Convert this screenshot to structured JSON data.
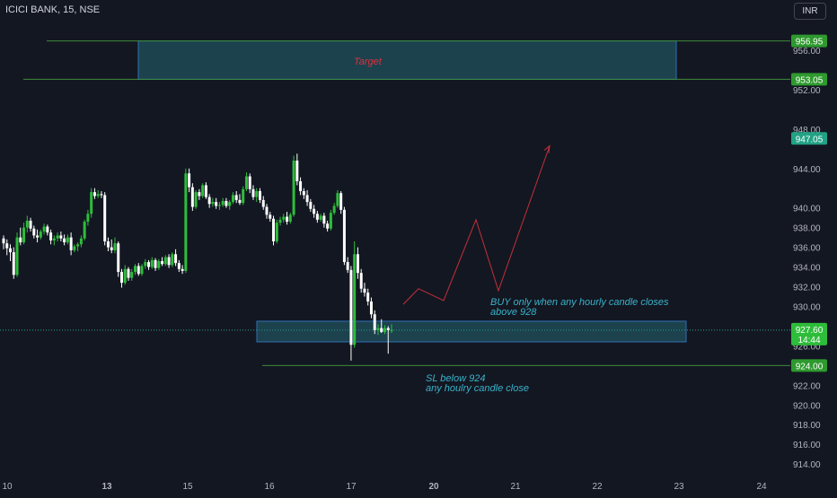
{
  "header": {
    "symbol": "ICICI BANK, 15, NSE",
    "currency": "INR"
  },
  "colors": {
    "background": "#131722",
    "up_candle": "#22ab94",
    "up_candle_bright": "#2ebd3a",
    "down_candle": "#ffffff",
    "zone_fill": "#1f4a55",
    "zone_border": "#2f6fb5",
    "level_line": "#3f8a3a",
    "label_green": "#2e9a2e",
    "label_teal": "#21a285",
    "projection_line": "#c2303a",
    "annotation_blue": "#39b3c9",
    "annotation_red": "#e0303e",
    "axis_text": "#b2b5be"
  },
  "chart_data": {
    "type": "candlestick",
    "y_axis": {
      "ticks": [
        "956.00",
        "952.00",
        "948.00",
        "944.00",
        "940.00",
        "938.00",
        "936.00",
        "934.00",
        "932.00",
        "930.00",
        "928.00",
        "926.00",
        "922.00",
        "920.00",
        "918.00",
        "916.00",
        "914.00"
      ],
      "range": [
        913.0,
        959.0
      ]
    },
    "x_axis": {
      "ticks": [
        "10",
        "13",
        "15",
        "16",
        "17",
        "20",
        "21",
        "22",
        "23",
        "24"
      ]
    },
    "price_labels": [
      {
        "value": "956.95",
        "style": "green"
      },
      {
        "value": "953.05",
        "style": "green"
      },
      {
        "value": "947.05",
        "style": "teal"
      },
      {
        "value": "924.00",
        "style": "green"
      }
    ],
    "current_price": {
      "value": "927.60",
      "countdown": "14:44"
    },
    "annotations": {
      "target": "Target",
      "buy_line1": "BUY only when any hourly candle closes",
      "buy_line2": "above 928",
      "sl_line1": "SL below 924",
      "sl_line2": "any houlry candle close"
    },
    "zones": [
      {
        "name": "target-zone",
        "top": 956.95,
        "bottom": 953.05
      },
      {
        "name": "buy-zone",
        "top": 928.5,
        "bottom": 926.4
      }
    ],
    "levels": [
      956.95,
      953.05,
      924.0
    ],
    "projection_path": [
      930.2,
      931.8,
      930.6,
      938.8,
      931.6,
      946.3
    ],
    "candles": [
      [
        936.9,
        937.2,
        935.8,
        936.4
      ],
      [
        936.4,
        936.8,
        935.2,
        935.9
      ],
      [
        935.9,
        936.3,
        934.6,
        935.5
      ],
      [
        935.5,
        936.0,
        932.8,
        933.2
      ],
      [
        933.2,
        937.5,
        933.0,
        937.0
      ],
      [
        937.0,
        938.0,
        936.2,
        936.5
      ],
      [
        936.5,
        938.5,
        936.3,
        938.0
      ],
      [
        938.0,
        939.2,
        937.5,
        938.7
      ],
      [
        938.7,
        939.0,
        937.6,
        937.9
      ],
      [
        937.9,
        938.2,
        936.9,
        937.2
      ],
      [
        937.2,
        937.8,
        936.5,
        937.0
      ],
      [
        937.0,
        937.8,
        936.8,
        937.6
      ],
      [
        937.6,
        938.4,
        937.3,
        938.1
      ],
      [
        938.1,
        938.3,
        937.2,
        937.5
      ],
      [
        937.5,
        937.8,
        936.3,
        936.7
      ],
      [
        936.7,
        937.2,
        936.2,
        936.9
      ],
      [
        936.9,
        937.5,
        936.6,
        937.2
      ],
      [
        937.2,
        937.6,
        936.6,
        936.9
      ],
      [
        936.9,
        937.3,
        936.2,
        936.5
      ],
      [
        936.5,
        937.3,
        936.3,
        937.0
      ],
      [
        937.0,
        937.5,
        935.2,
        935.7
      ],
      [
        935.7,
        936.3,
        935.5,
        936.1
      ],
      [
        936.1,
        936.5,
        935.6,
        936.3
      ],
      [
        936.3,
        937.2,
        936.0,
        936.9
      ],
      [
        936.9,
        938.8,
        936.7,
        938.6
      ],
      [
        938.6,
        939.8,
        938.2,
        939.4
      ],
      [
        939.4,
        942.0,
        939.0,
        941.6
      ],
      [
        941.6,
        942.0,
        940.9,
        941.2
      ],
      [
        941.2,
        941.8,
        941.0,
        941.4
      ],
      [
        941.4,
        941.7,
        941.0,
        941.3
      ],
      [
        941.3,
        941.6,
        936.2,
        936.6
      ],
      [
        936.6,
        937.0,
        935.6,
        936.0
      ],
      [
        936.0,
        936.8,
        935.4,
        935.7
      ],
      [
        935.7,
        937.0,
        935.4,
        936.4
      ],
      [
        936.4,
        936.6,
        933.0,
        933.5
      ],
      [
        933.5,
        933.8,
        931.9,
        932.4
      ],
      [
        932.4,
        934.2,
        932.2,
        933.8
      ],
      [
        933.8,
        934.0,
        932.6,
        932.9
      ],
      [
        932.9,
        933.8,
        932.6,
        933.5
      ],
      [
        933.5,
        934.3,
        933.2,
        934.1
      ],
      [
        934.1,
        934.4,
        933.1,
        933.3
      ],
      [
        933.3,
        934.3,
        933.1,
        934.1
      ],
      [
        934.1,
        934.8,
        933.8,
        934.5
      ],
      [
        934.5,
        934.7,
        933.7,
        934.0
      ],
      [
        934.0,
        935.0,
        933.8,
        934.7
      ],
      [
        934.7,
        934.9,
        933.6,
        933.9
      ],
      [
        933.9,
        934.8,
        933.7,
        934.6
      ],
      [
        934.6,
        935.0,
        934.1,
        934.3
      ],
      [
        934.3,
        935.2,
        934.1,
        935.0
      ],
      [
        935.0,
        935.3,
        933.9,
        934.2
      ],
      [
        934.2,
        935.5,
        934.0,
        935.3
      ],
      [
        935.3,
        935.8,
        934.1,
        934.4
      ],
      [
        934.4,
        934.7,
        933.5,
        933.8
      ],
      [
        933.8,
        934.2,
        933.3,
        933.6
      ],
      [
        933.6,
        944.0,
        933.4,
        943.5
      ],
      [
        943.5,
        944.0,
        941.6,
        942.1
      ],
      [
        942.1,
        942.5,
        939.7,
        940.1
      ],
      [
        940.1,
        941.8,
        939.9,
        941.6
      ],
      [
        941.6,
        941.9,
        940.8,
        941.2
      ],
      [
        941.2,
        942.5,
        941.0,
        942.3
      ],
      [
        942.3,
        942.6,
        940.9,
        941.1
      ],
      [
        941.1,
        941.4,
        940.0,
        940.4
      ],
      [
        940.4,
        941.0,
        940.1,
        940.6
      ],
      [
        940.6,
        941.0,
        939.9,
        940.2
      ],
      [
        940.2,
        940.6,
        939.8,
        940.3
      ],
      [
        940.3,
        941.0,
        940.1,
        940.7
      ],
      [
        940.7,
        941.0,
        940.0,
        940.2
      ],
      [
        940.2,
        940.8,
        939.8,
        940.6
      ],
      [
        940.6,
        941.6,
        940.4,
        941.3
      ],
      [
        941.3,
        941.7,
        940.5,
        940.8
      ],
      [
        940.8,
        941.4,
        940.3,
        940.5
      ],
      [
        940.5,
        942.2,
        940.3,
        941.9
      ],
      [
        941.9,
        943.6,
        941.7,
        943.2
      ],
      [
        943.2,
        943.5,
        941.5,
        941.9
      ],
      [
        941.9,
        942.3,
        940.8,
        941.1
      ],
      [
        941.1,
        942.0,
        940.6,
        941.7
      ],
      [
        941.7,
        942.0,
        940.5,
        940.8
      ],
      [
        940.8,
        941.2,
        939.8,
        940.1
      ],
      [
        940.1,
        940.4,
        938.9,
        939.3
      ],
      [
        939.3,
        939.6,
        938.6,
        938.9
      ],
      [
        938.9,
        939.2,
        936.2,
        936.6
      ],
      [
        936.6,
        938.8,
        936.4,
        938.5
      ],
      [
        938.5,
        939.1,
        938.2,
        938.8
      ],
      [
        938.8,
        939.4,
        938.5,
        939.1
      ],
      [
        939.1,
        939.6,
        938.3,
        938.6
      ],
      [
        938.6,
        939.5,
        938.4,
        939.3
      ],
      [
        939.3,
        945.3,
        939.1,
        944.8
      ],
      [
        944.8,
        945.5,
        942.3,
        942.7
      ],
      [
        942.7,
        943.1,
        941.3,
        941.7
      ],
      [
        941.7,
        942.0,
        940.9,
        941.3
      ],
      [
        941.3,
        941.8,
        940.2,
        940.6
      ],
      [
        940.6,
        940.9,
        939.6,
        939.9
      ],
      [
        939.9,
        940.3,
        939.0,
        939.4
      ],
      [
        939.4,
        939.7,
        938.5,
        938.8
      ],
      [
        938.8,
        939.4,
        938.6,
        939.2
      ],
      [
        939.2,
        939.5,
        938.0,
        938.4
      ],
      [
        938.4,
        938.7,
        937.6,
        937.9
      ],
      [
        937.9,
        939.8,
        937.7,
        939.5
      ],
      [
        939.5,
        940.5,
        939.3,
        940.2
      ],
      [
        940.2,
        941.8,
        940.0,
        941.5
      ],
      [
        941.5,
        941.7,
        939.4,
        939.8
      ],
      [
        939.8,
        940.1,
        934.2,
        934.5
      ],
      [
        934.5,
        935.0,
        933.4,
        933.7
      ],
      [
        933.7,
        934.1,
        924.5,
        926.1
      ],
      [
        926.1,
        936.6,
        925.8,
        935.3
      ],
      [
        935.3,
        936.0,
        932.8,
        933.4
      ],
      [
        933.4,
        933.8,
        931.4,
        931.8
      ],
      [
        931.8,
        932.4,
        931.0,
        931.4
      ],
      [
        931.4,
        931.8,
        930.1,
        930.5
      ],
      [
        930.5,
        930.9,
        928.8,
        929.2
      ],
      [
        929.2,
        929.6,
        927.2,
        927.6
      ],
      [
        927.6,
        928.2,
        927.1,
        927.8
      ],
      [
        927.8,
        928.7,
        927.3,
        927.4
      ],
      [
        927.4,
        928.1,
        927.2,
        927.8
      ],
      [
        927.8,
        928.0,
        925.2,
        927.6
      ],
      [
        927.6,
        928.2,
        927.3,
        927.6
      ]
    ]
  }
}
